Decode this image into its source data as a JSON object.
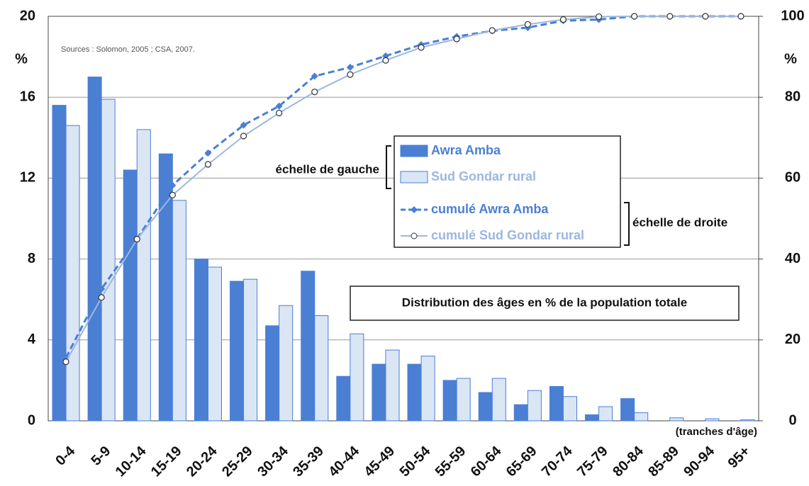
{
  "chart_data": {
    "type": "bar",
    "source": "Sources : Solomon, 2005 ; CSA, 2007.",
    "annotation": "Distribution des âges en % de la population totale",
    "left_scale_note": "échelle de gauche",
    "right_scale_note": "échelle de droite",
    "x_label": "(tranches d'âge)",
    "y_label": "%",
    "y2_label": "%",
    "categories": [
      "0-4",
      "5-9",
      "10-14",
      "15-19",
      "20-24",
      "25-29",
      "30-34",
      "35-39",
      "40-44",
      "45-49",
      "50-54",
      "55-59",
      "60-64",
      "65-69",
      "70-74",
      "75-79",
      "80-84",
      "85-89",
      "90-94",
      "95+"
    ],
    "ylim": [
      0,
      20
    ],
    "yticks": [
      0,
      4,
      8,
      12,
      16,
      20
    ],
    "y2lim": [
      0,
      100
    ],
    "y2ticks": [
      0,
      20,
      40,
      60,
      80,
      100
    ],
    "grid": true,
    "series": [
      {
        "name": "Awra Amba",
        "type": "bar",
        "color": "#4a7fd4",
        "values": [
          15.6,
          17.0,
          12.4,
          13.2,
          8.0,
          6.9,
          4.7,
          7.4,
          2.2,
          2.8,
          2.8,
          2.0,
          1.4,
          0.8,
          1.7,
          0.3,
          1.1,
          0,
          0,
          0
        ]
      },
      {
        "name": "Sud Gondar rural",
        "type": "bar",
        "color": "#dbe6f5",
        "values": [
          14.6,
          15.9,
          14.4,
          10.9,
          7.6,
          7.0,
          5.7,
          5.2,
          4.3,
          3.5,
          3.2,
          2.1,
          2.1,
          1.5,
          1.2,
          0.7,
          0.4,
          0.15,
          0.1,
          0.05
        ]
      },
      {
        "name": "cumulé Awra Amba",
        "type": "line",
        "axis": "y2",
        "color": "#4a7fd4",
        "values": [
          15.6,
          32.6,
          45,
          58.2,
          66.2,
          73.1,
          77.8,
          85.2,
          87.4,
          90.2,
          93,
          95,
          96.4,
          97.2,
          98.9,
          99.2,
          100,
          100,
          100,
          100
        ]
      },
      {
        "name": "cumulé Sud Gondar rural",
        "type": "line",
        "axis": "y2",
        "color": "#9bb7e0",
        "values": [
          14.6,
          30.5,
          44.9,
          55.8,
          63.4,
          70.4,
          76.1,
          81.3,
          85.6,
          89.1,
          92.3,
          94.4,
          96.5,
          98,
          99.2,
          99.9,
          100,
          100,
          100,
          100
        ]
      }
    ]
  }
}
